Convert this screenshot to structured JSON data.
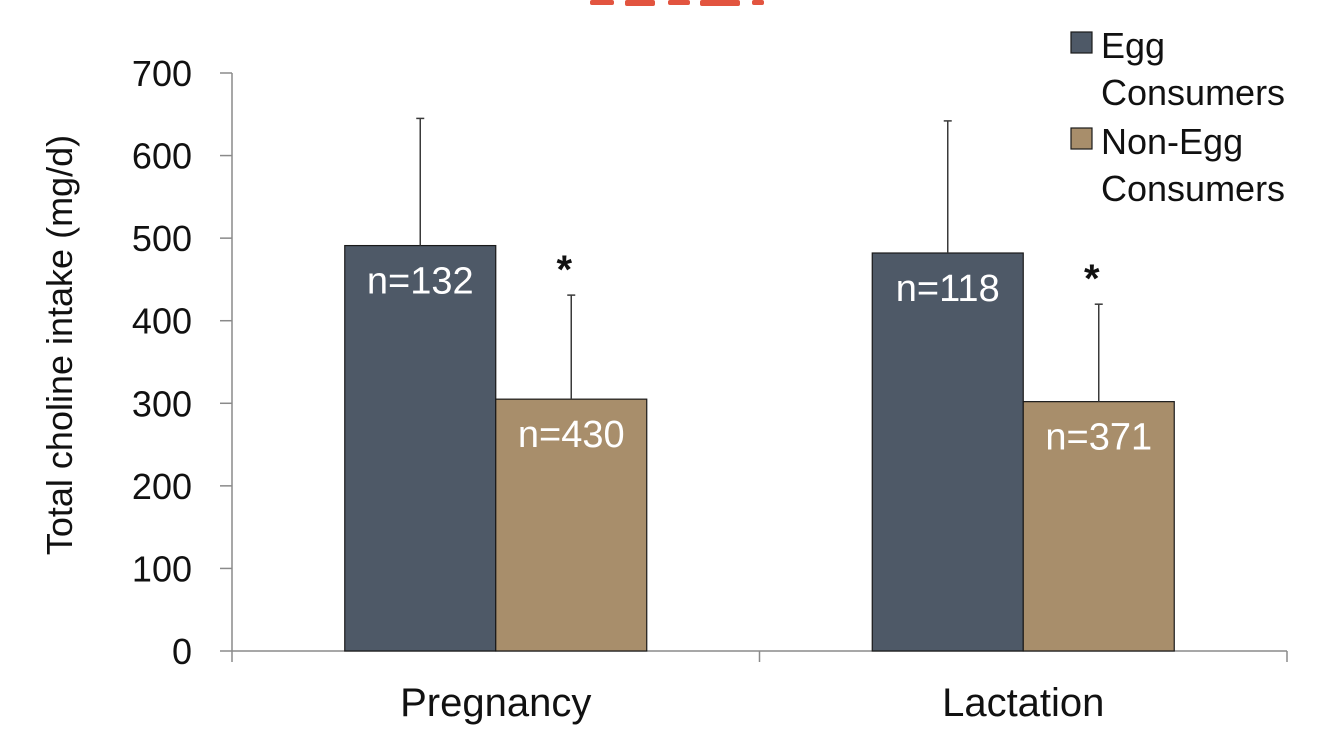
{
  "chart_data": {
    "type": "bar",
    "title": "",
    "xlabel": "",
    "ylabel": "Total choline intake (mg/d)",
    "ylim": [
      0,
      700
    ],
    "yticks": [
      0,
      100,
      200,
      300,
      400,
      500,
      600,
      700
    ],
    "categories": [
      "Pregnancy",
      "Lactation"
    ],
    "grid": false,
    "legend_position": "top-right",
    "series": [
      {
        "name": "Egg Consumers",
        "legend_lines": [
          "Egg",
          "Consumers"
        ],
        "color": "#4e5967",
        "values": [
          491,
          482
        ],
        "error_upper": [
          645,
          642
        ],
        "bar_labels": [
          "n=132",
          "n=118"
        ]
      },
      {
        "name": "Non-Egg Consumers",
        "legend_lines": [
          "Non-Egg",
          "Consumers"
        ],
        "color": "#a88e6b",
        "values": [
          305,
          302
        ],
        "error_upper": [
          431,
          420
        ],
        "bar_labels": [
          "n=430",
          "n=371"
        ],
        "significance": [
          "*",
          "*"
        ]
      }
    ]
  }
}
